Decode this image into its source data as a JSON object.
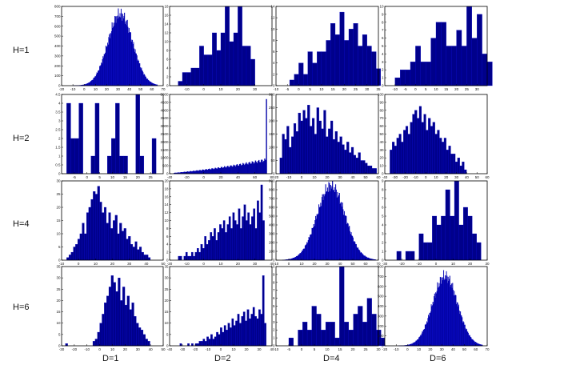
{
  "figure": {
    "row_labels": [
      "H=1",
      "H=2",
      "H=4",
      "H=6"
    ],
    "col_labels": [
      "D=1",
      "D=2",
      "D=4",
      "D=6"
    ],
    "bar_color": "#00008B",
    "edge_color": "#0000CC"
  },
  "chart_data": [
    {
      "type": "bar",
      "id": "H1_D1",
      "xlim": [
        -20,
        70
      ],
      "ylim": [
        0,
        800
      ],
      "xticks": [
        -20,
        -10,
        0,
        10,
        20,
        30,
        40,
        50,
        60,
        70
      ],
      "yticks": [
        0,
        100,
        200,
        300,
        400,
        500,
        600,
        700,
        800
      ],
      "dist": {
        "mu": 32,
        "sigma": 11,
        "peak": 720,
        "n": 150,
        "lo": -10,
        "hi": 65
      }
    },
    {
      "type": "bar",
      "id": "H1_D2",
      "xlim": [
        -20,
        40
      ],
      "ylim": [
        0,
        18
      ],
      "xticks": [
        -10,
        0,
        10,
        20,
        30
      ],
      "yticks": [
        0,
        2,
        4,
        6,
        8,
        10,
        12,
        14,
        16,
        18
      ],
      "bins": {
        "start": -15,
        "width": 2.5,
        "values": [
          1,
          3,
          3,
          4,
          4,
          9,
          7,
          7,
          12,
          8,
          12,
          18,
          10,
          12,
          18,
          9,
          9,
          6
        ]
      }
    },
    {
      "type": "bar",
      "id": "H1_D3",
      "xlim": [
        -10,
        35
      ],
      "ylim": [
        0,
        14
      ],
      "xticks": [
        -10,
        -5,
        0,
        5,
        10,
        15,
        20,
        25,
        30,
        35
      ],
      "yticks": [
        0,
        2,
        4,
        6,
        8,
        10,
        12,
        14
      ],
      "bins": {
        "start": -4,
        "width": 2,
        "values": [
          1,
          2,
          4,
          2,
          6,
          4,
          6,
          6,
          8,
          11,
          9,
          13,
          8,
          10,
          11,
          7,
          9,
          7,
          6,
          3
        ]
      }
    },
    {
      "type": "bar",
      "id": "H1_D4",
      "xlim": [
        -15,
        35
      ],
      "ylim": [
        0,
        10
      ],
      "xticks": [
        -10,
        -5,
        0,
        5,
        10,
        15,
        20,
        25,
        30
      ],
      "yticks": [
        0,
        1,
        2,
        3,
        4,
        5,
        6,
        7,
        8,
        9,
        10
      ],
      "bins": {
        "start": -10,
        "width": 2.5,
        "values": [
          1,
          2,
          2,
          3,
          5,
          3,
          3,
          6,
          8,
          8,
          5,
          5,
          7,
          5,
          10,
          6,
          9,
          4,
          3
        ]
      }
    },
    {
      "type": "bar",
      "id": "H2_D1",
      "xlim": [
        -10,
        30
      ],
      "ylim": [
        0,
        4.5
      ],
      "xticks": [
        -5,
        0,
        5,
        10,
        15,
        20,
        25
      ],
      "yticks": [
        0,
        0.5,
        1,
        1.5,
        2,
        2.5,
        3,
        3.5,
        4,
        4.5
      ],
      "bins": {
        "start": -8,
        "width": 1.6,
        "values": [
          4,
          2,
          2,
          4,
          0,
          0,
          1,
          4,
          0,
          0,
          1,
          2,
          4,
          1,
          1,
          0,
          0,
          4.5,
          1,
          0,
          0,
          2
        ]
      }
    },
    {
      "type": "bar",
      "id": "H2_D2",
      "xlim": [
        -40,
        80
      ],
      "ylim": [
        0,
        5000
      ],
      "xticks": [
        -40,
        -20,
        0,
        20,
        40,
        60,
        80
      ],
      "yticks": [
        0,
        500,
        1000,
        1500,
        2000,
        2500,
        3000,
        3500,
        4000,
        4500,
        5000
      ],
      "ramp": {
        "from": -35,
        "to": 73,
        "n": 110,
        "max": 900,
        "spike_x": 73,
        "spike_y": 4700
      }
    },
    {
      "type": "bar",
      "id": "H2_D3",
      "xlim": [
        -20,
        60
      ],
      "ylim": [
        0,
        300
      ],
      "xticks": [
        -20,
        -10,
        0,
        10,
        20,
        30,
        40,
        50,
        60
      ],
      "yticks": [
        0,
        50,
        100,
        150,
        200,
        250,
        300
      ],
      "bins": {
        "start": -17,
        "width": 1.8,
        "values": [
          60,
          150,
          130,
          180,
          100,
          140,
          190,
          160,
          230,
          200,
          240,
          210,
          260,
          180,
          210,
          150,
          250,
          200,
          170,
          240,
          140,
          170,
          200,
          130,
          160,
          120,
          140,
          110,
          90,
          120,
          80,
          100,
          70,
          60,
          80,
          50,
          50,
          40,
          30,
          30,
          20,
          20
        ]
      }
    },
    {
      "type": "bar",
      "id": "H2_D4",
      "xlim": [
        -40,
        60
      ],
      "ylim": [
        0,
        100
      ],
      "xticks": [
        -40,
        -30,
        -20,
        -10,
        0,
        10,
        20,
        30,
        40,
        50,
        60
      ],
      "yticks": [
        0,
        10,
        20,
        30,
        40,
        50,
        60,
        70,
        80,
        90,
        100
      ],
      "bins": {
        "start": -35,
        "width": 2.2,
        "values": [
          30,
          40,
          35,
          45,
          50,
          40,
          55,
          60,
          50,
          65,
          75,
          80,
          70,
          85,
          65,
          75,
          55,
          70,
          60,
          65,
          50,
          55,
          45,
          40,
          45,
          30,
          35,
          25,
          25,
          15,
          20,
          10,
          15,
          5
        ]
      }
    },
    {
      "type": "bar",
      "id": "H4_D1",
      "xlim": [
        -10,
        50
      ],
      "ylim": [
        0,
        30
      ],
      "xticks": [
        -10,
        0,
        10,
        20,
        30,
        40,
        50
      ],
      "yticks": [
        0,
        5,
        10,
        15,
        20,
        25,
        30
      ],
      "bins": {
        "start": -7,
        "width": 1.3,
        "values": [
          1,
          2,
          3,
          5,
          6,
          8,
          10,
          14,
          10,
          18,
          20,
          23,
          26,
          25,
          28,
          22,
          18,
          20,
          14,
          18,
          12,
          15,
          17,
          10,
          14,
          11,
          12,
          8,
          9,
          6,
          5,
          7,
          4,
          5,
          3,
          2,
          2,
          1
        ]
      }
    },
    {
      "type": "bar",
      "id": "H4_D2",
      "xlim": [
        -20,
        40
      ],
      "ylim": [
        0,
        20
      ],
      "xticks": [
        -20,
        -10,
        0,
        10,
        20,
        30,
        40
      ],
      "yticks": [
        0,
        2,
        4,
        6,
        8,
        10,
        12,
        14,
        16,
        18,
        20
      ],
      "bins": {
        "start": -15,
        "width": 1.1,
        "values": [
          1,
          1,
          0,
          1,
          2,
          1,
          1,
          2,
          1,
          2,
          3,
          2,
          4,
          3,
          6,
          4,
          5,
          7,
          6,
          8,
          5,
          7,
          9,
          8,
          10,
          7,
          9,
          11,
          8,
          12,
          10,
          9,
          13,
          8,
          11,
          14,
          10,
          12,
          9,
          11,
          13,
          8,
          15,
          12,
          19,
          10
        ]
      }
    },
    {
      "type": "bar",
      "id": "H4_D3",
      "xlim": [
        -10,
        70
      ],
      "ylim": [
        0,
        900
      ],
      "xticks": [
        -10,
        0,
        10,
        20,
        30,
        40,
        50,
        60,
        70
      ],
      "yticks": [
        0,
        100,
        200,
        300,
        400,
        500,
        600,
        700,
        800,
        900
      ],
      "dist": {
        "mu": 33,
        "sigma": 11,
        "peak": 840,
        "n": 150,
        "lo": -5,
        "hi": 68
      }
    },
    {
      "type": "bar",
      "id": "H4_D4",
      "xlim": [
        -30,
        30
      ],
      "ylim": [
        0,
        9
      ],
      "xticks": [
        -30,
        -20,
        -10,
        0,
        10,
        20,
        30
      ],
      "yticks": [
        0,
        1,
        2,
        3,
        4,
        5,
        6,
        7,
        8,
        9
      ],
      "bins": {
        "start": -23,
        "width": 2.6,
        "values": [
          1,
          0,
          1,
          1,
          0,
          3,
          2,
          2,
          5,
          4,
          5,
          8,
          5,
          9,
          4,
          6,
          5,
          3,
          2
        ]
      }
    },
    {
      "type": "bar",
      "id": "H6_D1",
      "xlim": [
        -30,
        50
      ],
      "ylim": [
        0,
        35
      ],
      "xticks": [
        -30,
        -20,
        -10,
        0,
        10,
        20,
        30,
        40,
        50
      ],
      "yticks": [
        0,
        5,
        10,
        15,
        20,
        25,
        30,
        35
      ],
      "bins": {
        "start": -27,
        "width": 1.8,
        "values": [
          1,
          0,
          0,
          0,
          0,
          0,
          0,
          0,
          0,
          0,
          0,
          0,
          2,
          3,
          6,
          10,
          14,
          19,
          22,
          26,
          31,
          28,
          24,
          30,
          20,
          26,
          18,
          22,
          16,
          19,
          13,
          10,
          8,
          7,
          5,
          3,
          2
        ]
      }
    },
    {
      "type": "bar",
      "id": "H6_D2",
      "xlim": [
        -40,
        40
      ],
      "ylim": [
        0,
        35
      ],
      "xticks": [
        -40,
        -30,
        -20,
        -10,
        0,
        10,
        20,
        30,
        40
      ],
      "yticks": [
        0,
        5,
        10,
        15,
        20,
        25,
        30,
        35
      ],
      "bins": {
        "start": -32,
        "width": 1.5,
        "values": [
          1,
          0,
          0,
          0,
          1,
          0,
          1,
          0,
          1,
          1,
          2,
          2,
          3,
          2,
          4,
          3,
          5,
          3,
          4,
          6,
          5,
          8,
          6,
          9,
          7,
          10,
          8,
          12,
          9,
          11,
          14,
          10,
          13,
          15,
          11,
          16,
          12,
          14,
          17,
          13,
          12,
          16,
          14,
          31,
          10
        ]
      }
    },
    {
      "type": "bar",
      "id": "H6_D3",
      "xlim": [
        -10,
        30
      ],
      "ylim": [
        0,
        10
      ],
      "xticks": [
        -10,
        -5,
        0,
        5,
        10,
        15,
        20,
        25,
        30
      ],
      "yticks": [
        0,
        1,
        2,
        3,
        4,
        5,
        6,
        7,
        8,
        9,
        10
      ],
      "bins": {
        "start": -5,
        "width": 1.8,
        "values": [
          1,
          0,
          2,
          3,
          2,
          5,
          4,
          2,
          3,
          3,
          1,
          10,
          3,
          2,
          4,
          5,
          3,
          6,
          4,
          2,
          1,
          0,
          0,
          0,
          1
        ]
      }
    },
    {
      "type": "bar",
      "id": "H6_D4",
      "xlim": [
        -20,
        70
      ],
      "ylim": [
        0,
        800
      ],
      "xticks": [
        -20,
        -10,
        0,
        10,
        20,
        30,
        40,
        50,
        60,
        70
      ],
      "yticks": [
        0,
        100,
        200,
        300,
        400,
        500,
        600,
        700,
        800
      ],
      "dist": {
        "mu": 33,
        "sigma": 11,
        "peak": 700,
        "n": 150,
        "lo": -8,
        "hi": 66
      }
    }
  ]
}
